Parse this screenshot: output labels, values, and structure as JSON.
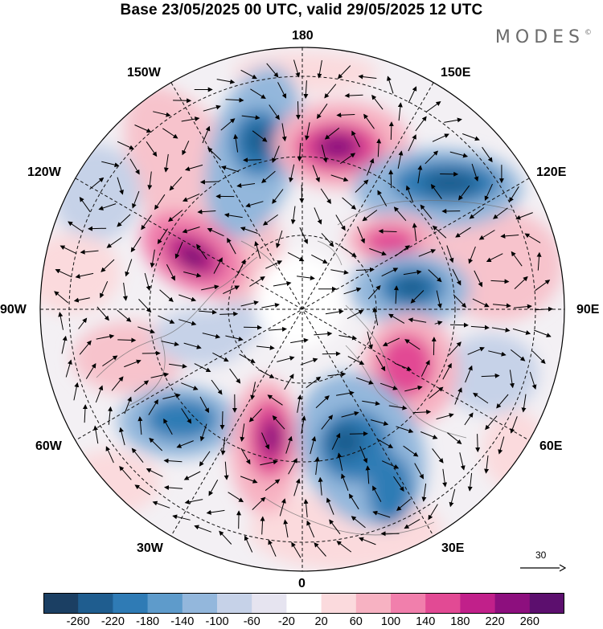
{
  "header": {
    "title": "Base 23/05/2025 00 UTC, valid 29/05/2025 12 UTC",
    "logo": "MODES",
    "logo_mark": "©"
  },
  "map": {
    "projection": "north polar stereographic",
    "longitude_labels": {
      "lon_180": "180",
      "lon_150e": "150E",
      "lon_120e": "120E",
      "lon_90e": "90E",
      "lon_60e": "60E",
      "lon_30e": "30E",
      "lon_0": "0",
      "lon_30w": "30W",
      "lon_60w": "60W",
      "lon_90w": "90W",
      "lon_120w": "120W",
      "lon_150w": "150W"
    },
    "reference_vector_label": "30",
    "colors": {
      "neg_strong": "#1b3f63",
      "neg": "#2a73a8",
      "neg_light": "#a9bdd9",
      "neutral": "#ffffff",
      "pos_light": "#f7c3cc",
      "pos": "#e24a94",
      "pos_strong": "#6a0f73"
    }
  },
  "colorbar": {
    "ticks": [
      "-260",
      "-220",
      "-180",
      "-140",
      "-100",
      "-60",
      "-20",
      "20",
      "60",
      "100",
      "140",
      "180",
      "220",
      "260"
    ],
    "colors": [
      "#1b3f63",
      "#1f5d8f",
      "#2f7bb5",
      "#5e9bcb",
      "#93b7dc",
      "#c6d2e8",
      "#e6e4f0",
      "#ffffff",
      "#fbdadd",
      "#f7b2c2",
      "#f17fac",
      "#e24a94",
      "#c1208a",
      "#8d0f7e",
      "#5c0f6e"
    ]
  }
}
